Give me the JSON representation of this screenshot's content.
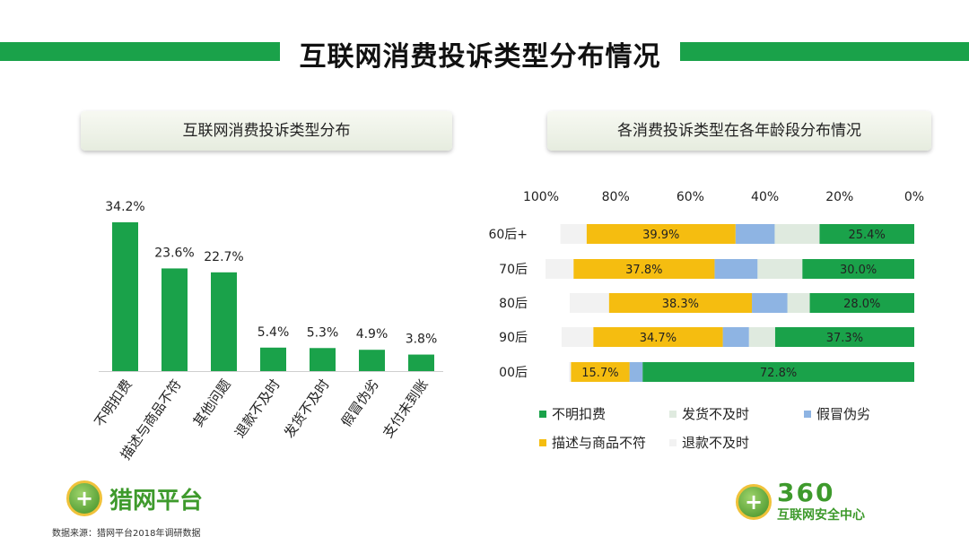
{
  "title": "互联网消费投诉类型分布情况",
  "source": "数据来源：猎网平台2018年调研数据",
  "logos": {
    "left_text": "猎网平台",
    "right_number": "360",
    "right_text": "互联网安全中心"
  },
  "colors": {
    "green": "#1aa24a",
    "yellow": "#f5bd10",
    "blue": "#8eb4e3",
    "light_green": "#dfeadf",
    "pale": "#f2f2f2"
  },
  "chart_data": [
    {
      "type": "bar",
      "title": "互联网消费投诉类型分布",
      "categories": [
        "不明扣费",
        "描述与商品不符",
        "其他问题",
        "退款不及时",
        "发货不及时",
        "假冒伪劣",
        "支付未到账"
      ],
      "values": [
        34.2,
        23.6,
        22.7,
        5.4,
        5.3,
        4.9,
        3.8
      ],
      "value_labels": [
        "34.2%",
        "23.6%",
        "22.7%",
        "5.4%",
        "5.3%",
        "4.9%",
        "3.8%"
      ],
      "ylim": [
        0,
        40
      ],
      "grid": false
    },
    {
      "type": "bar",
      "orientation": "horizontal-stacked-reversed",
      "title": "各消费投诉类型在各年龄段分布情况",
      "categories": [
        "60后+",
        "70后",
        "80后",
        "90后",
        "00后"
      ],
      "axis_ticks": [
        "100%",
        "80%",
        "60%",
        "40%",
        "20%",
        "0%"
      ],
      "series": [
        {
          "name": "不明扣费",
          "color": "#1aa24a",
          "values": [
            25.4,
            30.0,
            28.0,
            37.3,
            72.8
          ],
          "labels": [
            "25.4%",
            "30.0%",
            "28.0%",
            "37.3%",
            "72.8%"
          ]
        },
        {
          "name": "发货不及时",
          "color": "#dfeadf",
          "values": [
            12.0,
            12.0,
            6.0,
            7.0,
            0
          ],
          "labels": [
            "",
            "",
            "",
            "",
            ""
          ]
        },
        {
          "name": "假冒伪劣",
          "color": "#8eb4e3",
          "values": [
            10.5,
            11.5,
            9.5,
            7.0,
            3.5
          ],
          "labels": [
            "",
            "",
            "",
            "",
            ""
          ]
        },
        {
          "name": "描述与商品不符",
          "color": "#f5bd10",
          "values": [
            39.9,
            37.8,
            38.3,
            34.7,
            15.7
          ],
          "labels": [
            "39.9%",
            "37.8%",
            "38.3%",
            "34.7%",
            "15.7%"
          ]
        },
        {
          "name": "退款不及时",
          "color": "#f2f2f2",
          "values": [
            7.0,
            7.5,
            10.5,
            8.5,
            0.5
          ],
          "labels": [
            "",
            "",
            "",
            "",
            ""
          ]
        }
      ],
      "legend": [
        "不明扣费",
        "发货不及时",
        "假冒伪劣",
        "描述与商品不符",
        "退款不及时"
      ],
      "legend_position": "bottom",
      "xlim": [
        0,
        100
      ]
    }
  ]
}
